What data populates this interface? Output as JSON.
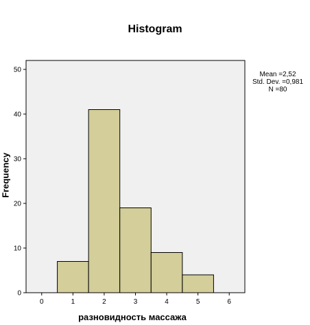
{
  "chart_data": {
    "type": "bar",
    "title": "Histogram",
    "xlabel": "разновидность массажа",
    "ylabel": "Frequency",
    "bins": [
      {
        "from": 0.5,
        "to": 1.5,
        "count": 7
      },
      {
        "from": 1.5,
        "to": 2.5,
        "count": 41
      },
      {
        "from": 2.5,
        "to": 3.5,
        "count": 19
      },
      {
        "from": 3.5,
        "to": 4.5,
        "count": 9
      },
      {
        "from": 4.5,
        "to": 5.5,
        "count": 4
      }
    ],
    "x_ticks": [
      "0",
      "1",
      "2",
      "3",
      "4",
      "5",
      "6"
    ],
    "y_ticks": [
      "0",
      "10",
      "20",
      "30",
      "40",
      "50"
    ],
    "xlim": [
      -0.5,
      6.5
    ],
    "ylim": [
      0,
      52
    ],
    "grid": false,
    "bar_color": "#d3ce9a",
    "plot_background": "#f0f0f0",
    "stats": {
      "mean": "Mean =2,52",
      "std_dev": "Std. Dev. =0,981",
      "n": "N =80"
    }
  }
}
